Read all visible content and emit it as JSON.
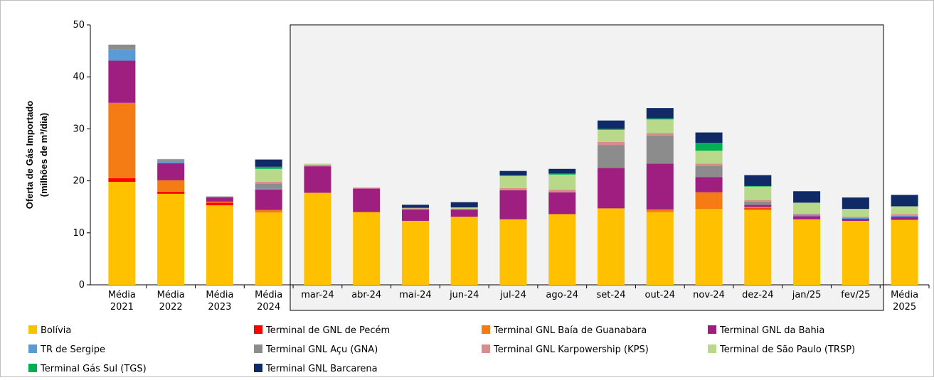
{
  "chart_data": {
    "type": "stacked_bar",
    "y_label_lines": [
      "Oferta de Gás Importado",
      "(milhões de m³/dia)"
    ],
    "categories": [
      "Média 2021",
      "Média 2022",
      "Média 2023",
      "Média 2024",
      "mar-24",
      "abr-24",
      "mai-24",
      "jun-24",
      "jul-24",
      "ago-24",
      "set-24",
      "out-24",
      "nov-24",
      "dez-24",
      "jan/25",
      "fev/25",
      "Média 2025"
    ],
    "ylim": [
      0,
      50
    ],
    "yticks": [
      0,
      10,
      20,
      30,
      40,
      50
    ],
    "series": [
      {
        "name": "Bolívia",
        "color": "#ffc000",
        "values": [
          19.8,
          17.5,
          15.3,
          13.9,
          17.7,
          14.0,
          12.3,
          13.1,
          12.6,
          13.6,
          14.7,
          14.0,
          14.6,
          14.5,
          12.6,
          12.3,
          12.5
        ]
      },
      {
        "name": "Terminal de GNL de Pecém",
        "color": "#ff0000",
        "values": [
          0.7,
          0.4,
          0.5,
          0,
          0,
          0,
          0,
          0,
          0,
          0,
          0,
          0,
          0,
          0.2,
          0,
          0,
          0
        ]
      },
      {
        "name": "Terminal GNL Baía de Guanabara",
        "color": "#f57c14",
        "values": [
          14.5,
          2.2,
          0.2,
          0.5,
          0,
          0,
          0,
          0,
          0,
          0,
          0,
          0.5,
          3.2,
          0.3,
          0,
          0,
          0
        ]
      },
      {
        "name": "Terminal GNL da Bahia",
        "color": "#9e1f80",
        "values": [
          8.1,
          3.3,
          0.8,
          3.9,
          5.1,
          4.5,
          2.2,
          1.4,
          5.6,
          4.2,
          7.8,
          8.8,
          2.9,
          0.4,
          0.6,
          0.4,
          0.6
        ]
      },
      {
        "name": "TR de Sergipe",
        "color": "#5b9bd5",
        "values": [
          2.2,
          0.4,
          0,
          0.2,
          0,
          0,
          0,
          0,
          0,
          0,
          0,
          0,
          0,
          0,
          0.3,
          0.2,
          0.2
        ]
      },
      {
        "name": "Terminal GNL Açu (GNA)",
        "color": "#8c8c8c",
        "values": [
          0.9,
          0.3,
          0.2,
          1.0,
          0,
          0,
          0,
          0,
          0,
          0,
          4.4,
          5.4,
          2.2,
          0.6,
          0,
          0,
          0
        ]
      },
      {
        "name": "Terminal GNL Karpowership (KPS)",
        "color": "#d98c8c",
        "values": [
          0,
          0.1,
          0,
          0.3,
          0.3,
          0.2,
          0.2,
          0.1,
          0.4,
          0.5,
          0.6,
          0.5,
          0.4,
          0.3,
          0.2,
          0.2,
          0.3
        ]
      },
      {
        "name": "Terminal de São Paulo (TRSP)",
        "color": "#b8d98a",
        "values": [
          0,
          0,
          0,
          2.5,
          0.2,
          0,
          0.1,
          0.3,
          2.4,
          2.9,
          2.3,
          2.6,
          2.5,
          2.6,
          2.1,
          1.5,
          1.5
        ]
      },
      {
        "name": "Terminal Gás Sul (TGS)",
        "color": "#00b050",
        "values": [
          0,
          0,
          0,
          0.4,
          0,
          0,
          0,
          0,
          0,
          0.2,
          0.2,
          0.2,
          1.5,
          0.1,
          0,
          0,
          0
        ]
      },
      {
        "name": "Terminal GNL Barcarena",
        "color": "#0f2a66",
        "values": [
          0,
          0,
          0,
          1.4,
          0,
          0,
          0.6,
          1.0,
          0.9,
          0.9,
          1.6,
          2.0,
          2.0,
          2.1,
          2.2,
          2.2,
          2.2
        ]
      }
    ]
  }
}
